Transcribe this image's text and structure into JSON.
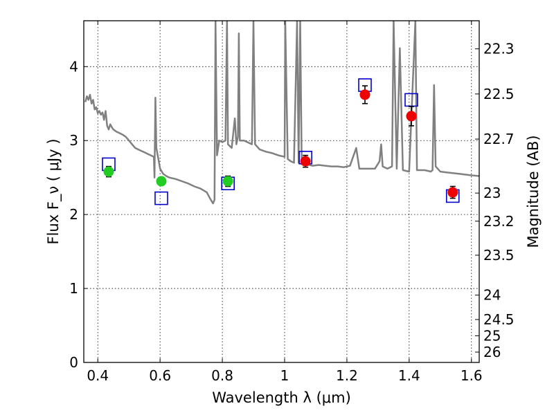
{
  "chart_data": {
    "type": "scatter",
    "title": "",
    "xlabel": "Wavelength  λ (μm)",
    "ylabel": "Flux  F_ν  ( μJy )",
    "ylabel_right": "Magnitude (AB)",
    "xlim": [
      0.355,
      1.625
    ],
    "ylim": [
      0,
      4.62
    ],
    "grid": true,
    "x_ticks": [
      0.4,
      0.6,
      0.8,
      1.0,
      1.2,
      1.4,
      1.6
    ],
    "x_tick_labels": [
      "0.4",
      "0.6",
      "0.8",
      "1",
      "1.2",
      "1.4",
      "1.6"
    ],
    "y_ticks": [
      0,
      1,
      2,
      3,
      4
    ],
    "y_tick_labels": [
      "0",
      "1",
      "2",
      "3",
      "4"
    ],
    "right_axis_ticks": [
      {
        "label": "22.3",
        "flux": 4.24
      },
      {
        "label": "22.5",
        "flux": 3.63
      },
      {
        "label": "22.7",
        "flux": 3.02
      },
      {
        "label": "23",
        "flux": 2.29
      },
      {
        "label": "23.2",
        "flux": 1.91
      },
      {
        "label": "23.5",
        "flux": 1.45
      },
      {
        "label": "24",
        "flux": 0.91
      },
      {
        "label": "24.5",
        "flux": 0.58
      },
      {
        "label": "25",
        "flux": 0.36
      },
      {
        "label": "26",
        "flux": 0.14
      }
    ],
    "series": [
      {
        "kind": "line",
        "color": "#808080",
        "points": [
          [
            0.36,
            3.52
          ],
          [
            0.365,
            3.6
          ],
          [
            0.37,
            3.55
          ],
          [
            0.375,
            3.62
          ],
          [
            0.38,
            3.5
          ],
          [
            0.385,
            3.55
          ],
          [
            0.39,
            3.42
          ],
          [
            0.395,
            3.45
          ],
          [
            0.4,
            3.37
          ],
          [
            0.405,
            3.4
          ],
          [
            0.41,
            3.35
          ],
          [
            0.415,
            3.38
          ],
          [
            0.42,
            3.28
          ],
          [
            0.425,
            3.4
          ],
          [
            0.43,
            3.2
          ],
          [
            0.435,
            3.15
          ],
          [
            0.44,
            3.22
          ],
          [
            0.445,
            3.18
          ],
          [
            0.45,
            3.15
          ],
          [
            0.46,
            3.12
          ],
          [
            0.47,
            3.1
          ],
          [
            0.48,
            3.08
          ],
          [
            0.49,
            3.05
          ],
          [
            0.5,
            3.0
          ],
          [
            0.51,
            2.95
          ],
          [
            0.52,
            2.9
          ],
          [
            0.53,
            2.88
          ],
          [
            0.54,
            2.86
          ],
          [
            0.55,
            2.84
          ],
          [
            0.56,
            2.82
          ],
          [
            0.57,
            2.8
          ],
          [
            0.58,
            2.78
          ],
          [
            0.582,
            2.5
          ],
          [
            0.585,
            3.58
          ],
          [
            0.588,
            2.9
          ],
          [
            0.6,
            2.62
          ],
          [
            0.61,
            2.55
          ],
          [
            0.62,
            2.52
          ],
          [
            0.63,
            2.5
          ],
          [
            0.65,
            2.48
          ],
          [
            0.67,
            2.45
          ],
          [
            0.69,
            2.42
          ],
          [
            0.71,
            2.38
          ],
          [
            0.73,
            2.35
          ],
          [
            0.75,
            2.3
          ],
          [
            0.76,
            2.22
          ],
          [
            0.77,
            2.15
          ],
          [
            0.775,
            2.2
          ],
          [
            0.778,
            4.62
          ],
          [
            0.783,
            2.8
          ],
          [
            0.79,
            3.0
          ],
          [
            0.8,
            2.98
          ],
          [
            0.81,
            3.0
          ],
          [
            0.815,
            4.62
          ],
          [
            0.818,
            2.95
          ],
          [
            0.83,
            2.9
          ],
          [
            0.84,
            3.3
          ],
          [
            0.845,
            2.95
          ],
          [
            0.85,
            3.05
          ],
          [
            0.853,
            4.45
          ],
          [
            0.856,
            3.0
          ],
          [
            0.87,
            3.0
          ],
          [
            0.88,
            2.98
          ],
          [
            0.895,
            2.95
          ],
          [
            0.9,
            4.62
          ],
          [
            0.905,
            2.95
          ],
          [
            0.92,
            2.88
          ],
          [
            0.94,
            2.85
          ],
          [
            0.96,
            2.83
          ],
          [
            0.98,
            2.8
          ],
          [
            1.0,
            2.78
          ],
          [
            1.002,
            4.62
          ],
          [
            1.01,
            2.75
          ],
          [
            1.02,
            2.72
          ],
          [
            1.03,
            2.7
          ],
          [
            1.04,
            4.62
          ],
          [
            1.045,
            2.7
          ],
          [
            1.05,
            4.62
          ],
          [
            1.055,
            2.68
          ],
          [
            1.07,
            2.68
          ],
          [
            1.09,
            2.66
          ],
          [
            1.11,
            2.67
          ],
          [
            1.13,
            2.66
          ],
          [
            1.15,
            2.65
          ],
          [
            1.17,
            2.65
          ],
          [
            1.19,
            2.64
          ],
          [
            1.21,
            2.66
          ],
          [
            1.23,
            2.9
          ],
          [
            1.24,
            2.62
          ],
          [
            1.27,
            2.62
          ],
          [
            1.29,
            2.62
          ],
          [
            1.305,
            2.72
          ],
          [
            1.31,
            2.95
          ],
          [
            1.315,
            2.65
          ],
          [
            1.33,
            2.62
          ],
          [
            1.345,
            2.65
          ],
          [
            1.35,
            4.62
          ],
          [
            1.36,
            2.62
          ],
          [
            1.37,
            4.25
          ],
          [
            1.38,
            2.6
          ],
          [
            1.4,
            2.58
          ],
          [
            1.42,
            4.62
          ],
          [
            1.425,
            2.6
          ],
          [
            1.43,
            2.6
          ],
          [
            1.45,
            2.6
          ],
          [
            1.47,
            2.58
          ],
          [
            1.475,
            2.6
          ],
          [
            1.48,
            3.75
          ],
          [
            1.485,
            2.65
          ],
          [
            1.5,
            2.58
          ],
          [
            1.52,
            2.57
          ],
          [
            1.54,
            2.56
          ],
          [
            1.56,
            2.55
          ],
          [
            1.58,
            2.54
          ],
          [
            1.6,
            2.53
          ],
          [
            1.625,
            2.52
          ]
        ]
      },
      {
        "kind": "squares",
        "color": "#0000cc",
        "points": [
          [
            0.435,
            2.68
          ],
          [
            0.604,
            2.22
          ],
          [
            0.818,
            2.42
          ],
          [
            1.067,
            2.77
          ],
          [
            1.258,
            3.75
          ],
          [
            1.407,
            3.55
          ],
          [
            1.54,
            2.25
          ]
        ]
      },
      {
        "kind": "circles",
        "color": "#22cc22",
        "points": [
          [
            0.435,
            2.58
          ],
          [
            0.604,
            2.45
          ],
          [
            0.818,
            2.45
          ]
        ],
        "errors": [
          0.07,
          0.05,
          0.07
        ]
      },
      {
        "kind": "circles",
        "color": "#ee0000",
        "points": [
          [
            1.067,
            2.72
          ],
          [
            1.258,
            3.62
          ],
          [
            1.407,
            3.33
          ],
          [
            1.54,
            2.3
          ]
        ],
        "errors": [
          0.08,
          0.12,
          0.13,
          0.08
        ]
      }
    ]
  }
}
